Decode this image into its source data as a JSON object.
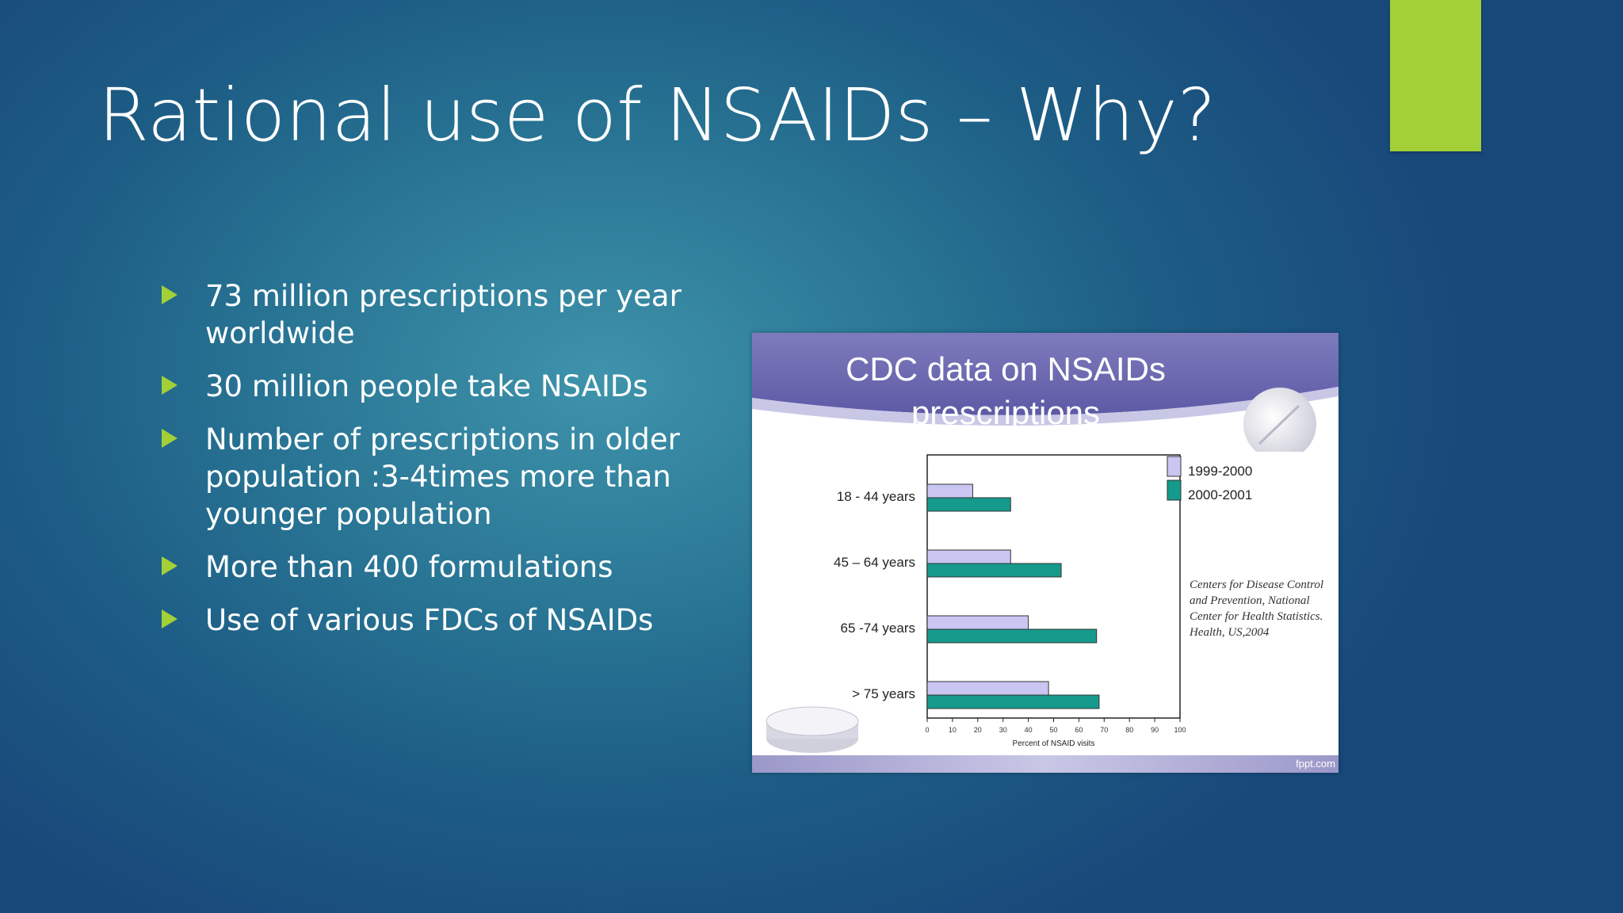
{
  "slide": {
    "title": "Rational use of NSAIDs – Why?",
    "accent_color": "#a3cf37",
    "bullets": [
      "73 million prescriptions per year worldwide",
      "30 million people take NSAIDs",
      "Number of prescriptions in older population :3-4times more than younger population",
      "More than 400 formulations",
      "Use of various FDCs of NSAIDs"
    ]
  },
  "chart_card": {
    "citation": "Centers for Disease Control and Prevention, National Center for Health Statistics. Health, US,2004",
    "credit": "fppt.com"
  },
  "chart_data": {
    "type": "bar",
    "orientation": "horizontal",
    "title": "CDC data on NSAIDs prescriptions",
    "categories": [
      "18 - 44 years",
      "45 – 64 years",
      "65 -74 years",
      "> 75 years"
    ],
    "series": [
      {
        "name": "1999-2000",
        "color": "#c9c6f2",
        "values": [
          18,
          33,
          40,
          48
        ]
      },
      {
        "name": "2000-2001",
        "color": "#159a8c",
        "values": [
          33,
          53,
          67,
          68
        ]
      }
    ],
    "xlabel": "Percent of NSAID visits",
    "xlim": [
      0,
      100
    ],
    "xticks": [
      0,
      10,
      20,
      30,
      40,
      50,
      60,
      70,
      80,
      90,
      100
    ],
    "legend": "top-right"
  }
}
